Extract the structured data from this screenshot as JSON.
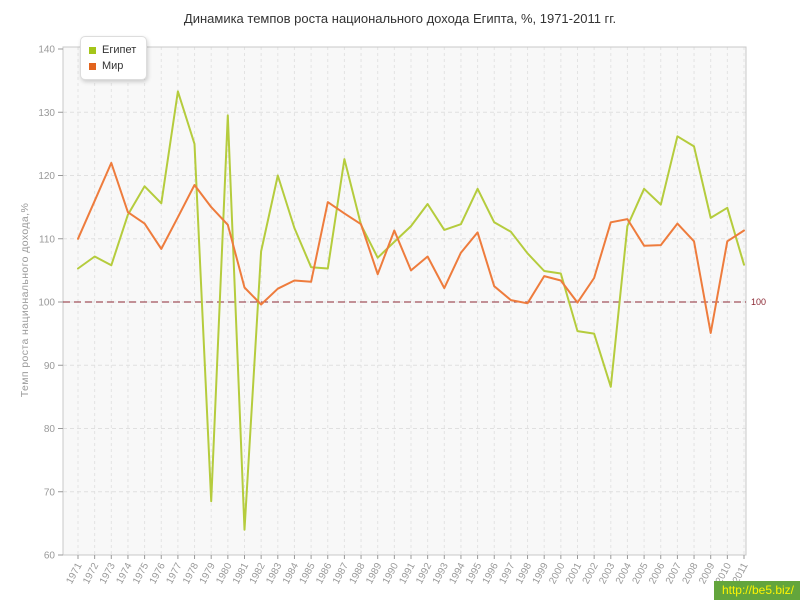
{
  "chart_data": {
    "type": "line",
    "title": "Динамика темпов роста национального дохода Египта, %, 1971-2011 гг.",
    "ylabel": "Темп роста национального дохода,%",
    "xlabel": "",
    "ylim": [
      60,
      140
    ],
    "yticks": [
      60,
      70,
      80,
      90,
      100,
      110,
      120,
      130,
      140
    ],
    "grid": true,
    "legend_position": "top-left",
    "ref_line": {
      "value": 100,
      "label": "100",
      "color": "#8b2833"
    },
    "x": [
      1971,
      1972,
      1973,
      1974,
      1975,
      1976,
      1977,
      1978,
      1979,
      1980,
      1981,
      1982,
      1983,
      1984,
      1985,
      1986,
      1987,
      1988,
      1989,
      1990,
      1991,
      1992,
      1993,
      1994,
      1995,
      1996,
      1997,
      1998,
      1999,
      2000,
      2001,
      2002,
      2003,
      2004,
      2005,
      2006,
      2007,
      2008,
      2009,
      2010,
      2011
    ],
    "series": [
      {
        "name": "Египет",
        "color": "#b5cc3d",
        "swatch": "#a4c519",
        "values": [
          105.3,
          107.2,
          105.8,
          113.8,
          118.3,
          115.6,
          133.3,
          125.0,
          68.5,
          129.5,
          64.0,
          108.0,
          120.0,
          111.7,
          105.5,
          105.3,
          122.6,
          112.2,
          107.0,
          109.5,
          112.0,
          115.5,
          111.4,
          112.3,
          117.9,
          112.6,
          111.1,
          107.7,
          104.9,
          104.5,
          95.4,
          95.0,
          86.6,
          112.0,
          117.9,
          115.4,
          126.2,
          124.6,
          113.3,
          114.9,
          105.9
        ]
      },
      {
        "name": "Мир",
        "color": "#ee7c3d",
        "swatch": "#e2641e",
        "values": [
          110.0,
          116.0,
          122.0,
          114.2,
          112.4,
          108.4,
          113.4,
          118.5,
          115.0,
          112.2,
          102.3,
          99.6,
          102.1,
          103.4,
          103.2,
          115.8,
          114.0,
          112.3,
          104.4,
          111.3,
          105.0,
          107.2,
          102.2,
          107.8,
          111.0,
          102.5,
          100.3,
          99.8,
          104.1,
          103.4,
          99.9,
          103.8,
          112.6,
          113.1,
          108.9,
          109.0,
          112.4,
          109.6,
          95.1,
          109.6,
          111.3
        ]
      }
    ]
  },
  "watermark": {
    "text": "http://be5.biz/",
    "bg_color": "#63a53c",
    "text_color": "#fcf403"
  }
}
